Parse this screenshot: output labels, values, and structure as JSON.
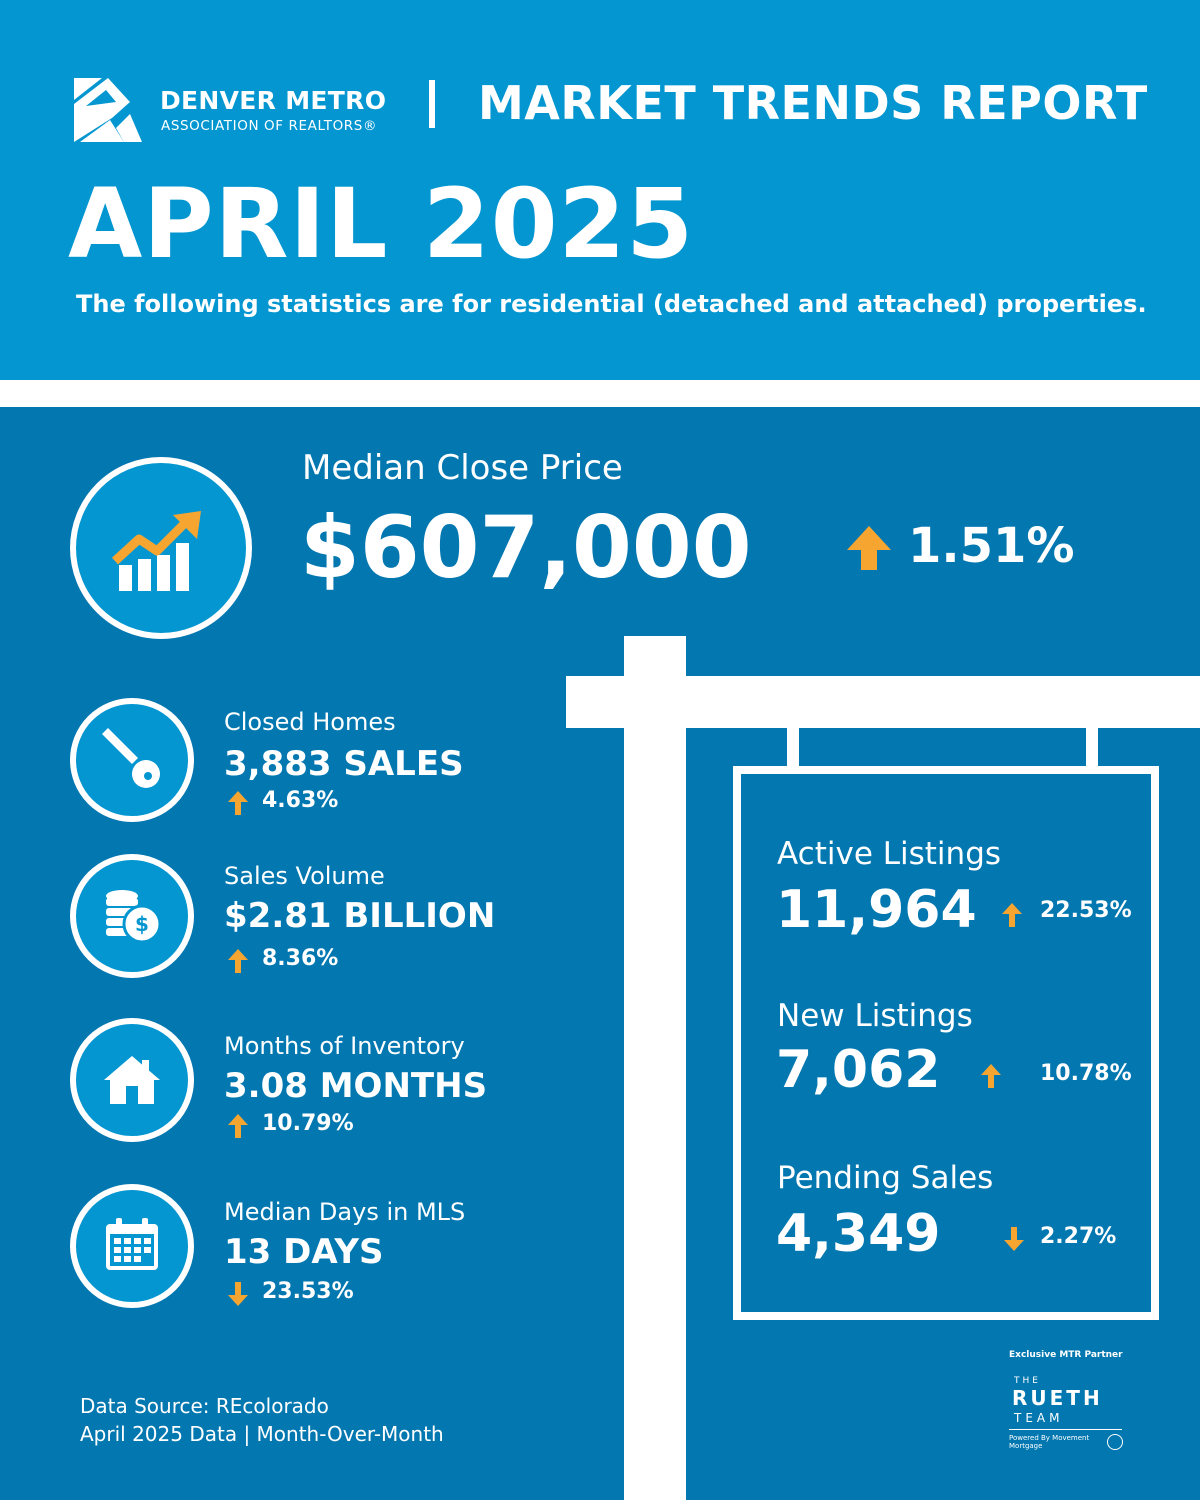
{
  "header": {
    "org_name": "DENVER METRO",
    "org_subtitle": "ASSOCIATION OF REALTORS®",
    "report_title": "MARKET TRENDS REPORT",
    "month": "APRIL 2025",
    "intro": "The following statistics are for residential (detached and attached) properties."
  },
  "median_close_price": {
    "label": "Median Close Price",
    "value": "$607,000",
    "change": "1.51%",
    "direction": "up",
    "icon": "growth-chart-icon"
  },
  "stats": [
    {
      "label": "Closed Homes",
      "value": "3,883 SALES",
      "change": "4.63%",
      "direction": "up",
      "icon": "key-icon"
    },
    {
      "label": "Sales Volume",
      "value": "$2.81 BILLION",
      "change": "8.36%",
      "direction": "up",
      "icon": "coins-icon"
    },
    {
      "label": "Months of Inventory",
      "value": "3.08 MONTHS",
      "change": "10.79%",
      "direction": "up",
      "icon": "house-icon"
    },
    {
      "label": "Median Days in MLS",
      "value": "13 DAYS",
      "change": "23.53%",
      "direction": "down",
      "icon": "calendar-icon"
    }
  ],
  "sign_listings": [
    {
      "label": "Active Listings",
      "value": "11,964",
      "change": "22.53%",
      "direction": "up"
    },
    {
      "label": "New Listings",
      "value": "7,062",
      "change": "10.78%",
      "direction": "up"
    },
    {
      "label": "Pending Sales",
      "value": "4,349",
      "change": "2.27%",
      "direction": "down"
    }
  ],
  "footer": {
    "source": "Data Source: REcolorado",
    "period": "April 2025 Data | Month-Over-Month"
  },
  "partner": {
    "label": "Exclusive MTR Partner",
    "the": "THE",
    "name": "RUETH",
    "team": "TEAM",
    "powered_by": "Powered By Movement Mortgage"
  },
  "colors": {
    "header_blue": "#0496d0",
    "body_blue": "#0277b0",
    "accent_orange": "#f7a531",
    "white": "#ffffff"
  }
}
